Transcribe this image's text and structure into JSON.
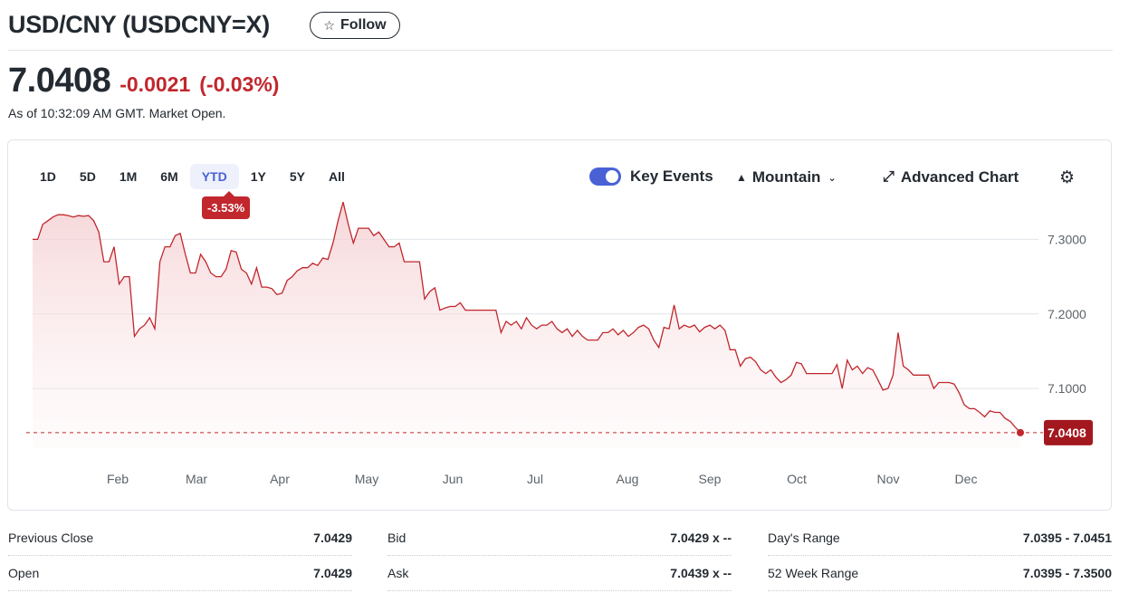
{
  "header": {
    "title": "USD/CNY (USDCNY=X)",
    "follow_label": "Follow",
    "follow_icon": "star-outline-icon"
  },
  "quote": {
    "price": "7.0408",
    "change": "-0.0021",
    "change_pct": "(-0.03%)",
    "as_of": "As of 10:32:09 AM GMT. Market Open.",
    "negative_color": "#c1272d"
  },
  "toolbar": {
    "ranges": [
      "1D",
      "5D",
      "1M",
      "6M",
      "YTD",
      "1Y",
      "5Y",
      "All"
    ],
    "active_range": "YTD",
    "ytd_badge": "-3.53%",
    "key_events_label": "Key Events",
    "key_events_on": true,
    "chart_type_label": "Mountain",
    "advanced_label": "Advanced Chart"
  },
  "chart_data": {
    "type": "area",
    "x_labels": [
      "Feb",
      "Mar",
      "Apr",
      "May",
      "Jun",
      "Jul",
      "Aug",
      "Sep",
      "Oct",
      "Nov",
      "Dec"
    ],
    "y_ticks": [
      "7.3000",
      "7.2000",
      "7.1000"
    ],
    "y_tick_values": [
      7.3,
      7.2,
      7.1
    ],
    "ylim": [
      7.02,
      7.36
    ],
    "current_value": 7.0408,
    "current_label": "7.0408",
    "line_color": "#c1272d",
    "grid": true,
    "series": [
      {
        "values": [
          7.3,
          7.3,
          7.32,
          7.325,
          7.33,
          7.333,
          7.333,
          7.332,
          7.33,
          7.332,
          7.331,
          7.332,
          7.325,
          7.31,
          7.27,
          7.27,
          7.29,
          7.24,
          7.25,
          7.25,
          7.17,
          7.18,
          7.185,
          7.195,
          7.18,
          7.27,
          7.29,
          7.29,
          7.305,
          7.308,
          7.28,
          7.255,
          7.255,
          7.28,
          7.27,
          7.255,
          7.25,
          7.25,
          7.26,
          7.285,
          7.283,
          7.26,
          7.255,
          7.24,
          7.262,
          7.236,
          7.236,
          7.234,
          7.226,
          7.228,
          7.245,
          7.25,
          7.258,
          7.262,
          7.262,
          7.268,
          7.265,
          7.275,
          7.273,
          7.295,
          7.325,
          7.35,
          7.32,
          7.295,
          7.315,
          7.315,
          7.315,
          7.305,
          7.31,
          7.3,
          7.29,
          7.29,
          7.295,
          7.27,
          7.27,
          7.27,
          7.27,
          7.22,
          7.23,
          7.235,
          7.205,
          7.208,
          7.21,
          7.21,
          7.215,
          7.205,
          7.205,
          7.205,
          7.205,
          7.205,
          7.205,
          7.205,
          7.175,
          7.19,
          7.185,
          7.19,
          7.18,
          7.195,
          7.185,
          7.18,
          7.185,
          7.185,
          7.19,
          7.18,
          7.175,
          7.18,
          7.17,
          7.178,
          7.17,
          7.165,
          7.165,
          7.165,
          7.175,
          7.175,
          7.18,
          7.172,
          7.178,
          7.17,
          7.175,
          7.182,
          7.185,
          7.18,
          7.165,
          7.155,
          7.182,
          7.18,
          7.212,
          7.18,
          7.185,
          7.182,
          7.185,
          7.176,
          7.182,
          7.185,
          7.18,
          7.185,
          7.178,
          7.152,
          7.152,
          7.13,
          7.14,
          7.142,
          7.136,
          7.125,
          7.12,
          7.125,
          7.115,
          7.108,
          7.112,
          7.118,
          7.135,
          7.133,
          7.12,
          7.12,
          7.12,
          7.12,
          7.12,
          7.12,
          7.132,
          7.1,
          7.138,
          7.125,
          7.13,
          7.12,
          7.128,
          7.125,
          7.112,
          7.098,
          7.1,
          7.118,
          7.175,
          7.13,
          7.125,
          7.118,
          7.118,
          7.118,
          7.118,
          7.1,
          7.108,
          7.108,
          7.108,
          7.106,
          7.094,
          7.078,
          7.073,
          7.073,
          7.068,
          7.062,
          7.07,
          7.068,
          7.068,
          7.06,
          7.056,
          7.048,
          7.041
        ]
      }
    ]
  },
  "stats": {
    "col1": [
      {
        "label": "Previous Close",
        "value": "7.0429"
      },
      {
        "label": "Open",
        "value": "7.0429"
      }
    ],
    "col2": [
      {
        "label": "Bid",
        "value": "7.0429 x --"
      },
      {
        "label": "Ask",
        "value": "7.0439 x --"
      }
    ],
    "col3": [
      {
        "label": "Day's Range",
        "value": "7.0395 - 7.0451"
      },
      {
        "label": "52 Week Range",
        "value": "7.0395 - 7.3500"
      }
    ]
  }
}
